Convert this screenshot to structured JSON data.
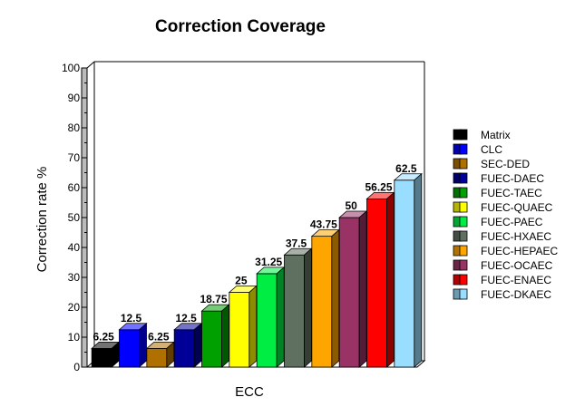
{
  "chart_data": {
    "type": "bar",
    "title": "Correction Coverage",
    "xlabel": "ECC",
    "ylabel": "Correction rate %",
    "ylim": [
      0,
      100
    ],
    "yticks": [
      0,
      10,
      20,
      30,
      40,
      50,
      60,
      70,
      80,
      90,
      100
    ],
    "categories": [
      "Matrix",
      "CLC",
      "SEC-DED",
      "FUEC-DAEC",
      "FUEC-TAEC",
      "FUEC-QUAEC",
      "FUEC-PAEC",
      "FUEC-HXAEC",
      "FUEC-HEPAEC",
      "FUEC-OCAEC",
      "FUEC-ENAEC",
      "FUEC-DKAEC"
    ],
    "values": [
      6.25,
      12.5,
      6.25,
      12.5,
      18.75,
      25,
      31.25,
      37.5,
      43.75,
      50,
      56.25,
      62.5
    ],
    "data_labels": [
      "6.25",
      "12.5",
      "6.25",
      "12.5",
      "18.75",
      "25",
      "31.25",
      "37.5",
      "43.75",
      "50",
      "56.25",
      "62.5"
    ],
    "colors": [
      "#000000",
      "#0000ff",
      "#b07000",
      "#000099",
      "#00a000",
      "#ffff00",
      "#00ee44",
      "#607060",
      "#ffa500",
      "#993366",
      "#ff0000",
      "#99ddff"
    ],
    "legend_position": "right",
    "grid": false
  }
}
